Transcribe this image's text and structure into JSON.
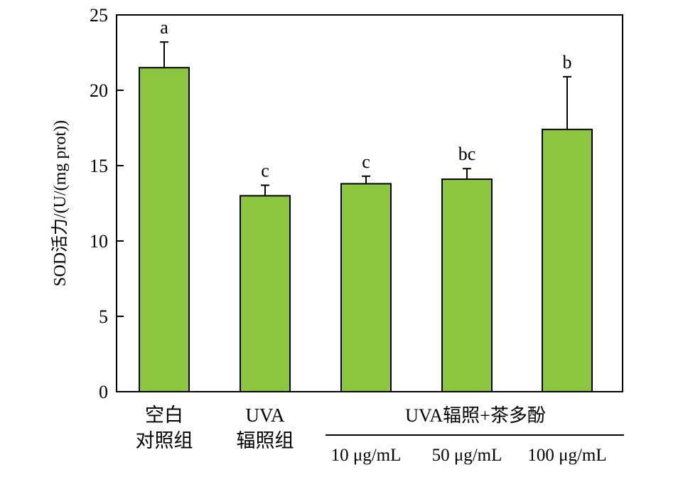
{
  "chart_data": {
    "type": "bar",
    "categories": [
      [
        "空白",
        "对照组"
      ],
      [
        "UVA",
        "辐照组"
      ],
      [
        "10 μg/mL"
      ],
      [
        "50 μg/mL"
      ],
      [
        "100 μg/mL"
      ]
    ],
    "group_label": "UVA辐照+茶多酚",
    "values": [
      21.5,
      13.0,
      13.8,
      14.1,
      17.4
    ],
    "errors": [
      1.7,
      0.7,
      0.5,
      0.7,
      3.5
    ],
    "significance": [
      "a",
      "c",
      "c",
      "bc",
      "b"
    ],
    "ylabel": "SOD活力/(U/(mg prot))",
    "xlabel": "",
    "title": "",
    "ylim": [
      0,
      25
    ],
    "yticks": [
      0,
      5,
      10,
      15,
      20,
      25
    ],
    "grid": false,
    "colors": {
      "bar": "#8cc63f",
      "stroke": "#000000"
    }
  }
}
